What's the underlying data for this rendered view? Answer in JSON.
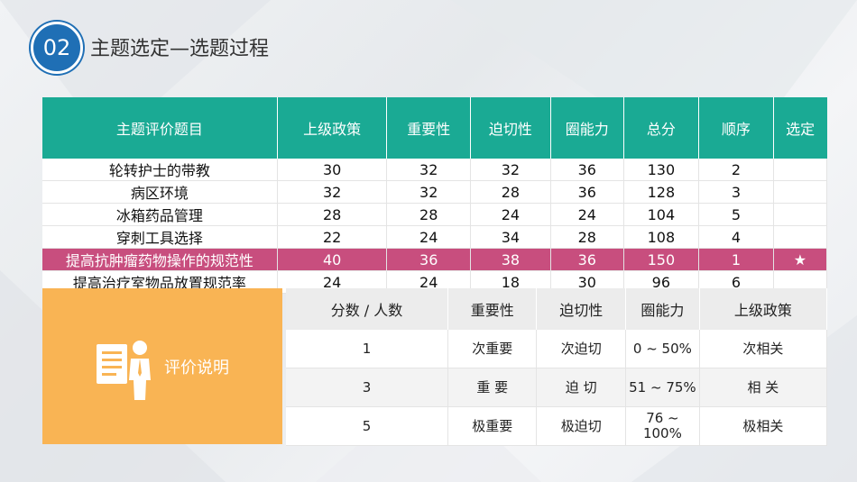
{
  "badge": "02",
  "title": "主题选定—选题过程",
  "main_table": {
    "headers": [
      "主题评价题目",
      "上级政策",
      "重要性",
      "迫切性",
      "圈能力",
      "总分",
      "顺序",
      "选定"
    ],
    "rows": [
      [
        "轮转护士的带教",
        "30",
        "32",
        "32",
        "36",
        "130",
        "2",
        ""
      ],
      [
        "病区环境",
        "32",
        "32",
        "28",
        "36",
        "128",
        "3",
        ""
      ],
      [
        "冰箱药品管理",
        "28",
        "28",
        "24",
        "24",
        "104",
        "5",
        ""
      ],
      [
        "穿刺工具选择",
        "22",
        "24",
        "34",
        "28",
        "108",
        "4",
        ""
      ],
      [
        "提高抗肿瘤药物操作的规范性",
        "40",
        "36",
        "38",
        "36",
        "150",
        "1",
        "★"
      ],
      [
        "提高治疗室物品放置规范率",
        "24",
        "24",
        "18",
        "30",
        "96",
        "6",
        ""
      ]
    ],
    "highlight_row": 4,
    "highlight_color": "#c84e7e",
    "header_color": "#1aaa94"
  },
  "legend": {
    "label": "评价说明",
    "color": "#f9b454"
  },
  "eval_table": {
    "headers": [
      "分数 / 人数",
      "重要性",
      "迫切性",
      "圈能力",
      "上级政策"
    ],
    "rows": [
      [
        "1",
        "次重要",
        "次迫切",
        "0 ~ 50%",
        "次相关"
      ],
      [
        "3",
        "重 要",
        "迫 切",
        "51 ~ 75%",
        "相 关"
      ],
      [
        "5",
        "极重要",
        "极迫切",
        "76 ~ 100%",
        "极相关"
      ]
    ]
  }
}
